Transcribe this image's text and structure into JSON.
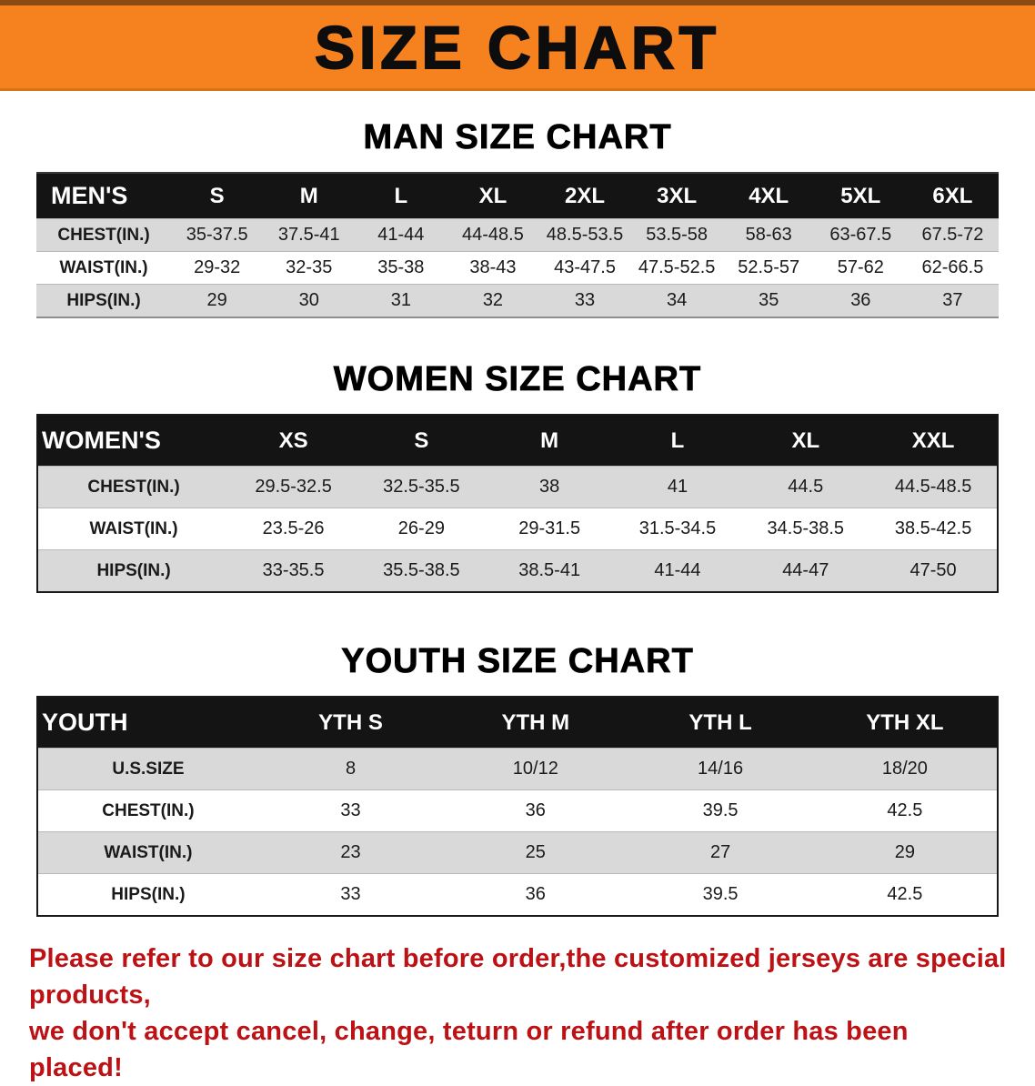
{
  "banner": {
    "title": "SIZE CHART"
  },
  "sections": {
    "men": {
      "heading": "MAN SIZE CHART",
      "table": {
        "header": [
          "MEN'S",
          "S",
          "M",
          "L",
          "XL",
          "2XL",
          "3XL",
          "4XL",
          "5XL",
          "6XL"
        ],
        "rows": [
          [
            "CHEST(IN.)",
            "35-37.5",
            "37.5-41",
            "41-44",
            "44-48.5",
            "48.5-53.5",
            "53.5-58",
            "58-63",
            "63-67.5",
            "67.5-72"
          ],
          [
            "WAIST(IN.)",
            "29-32",
            "32-35",
            "35-38",
            "38-43",
            "43-47.5",
            "47.5-52.5",
            "52.5-57",
            "57-62",
            "62-66.5"
          ],
          [
            "HIPS(IN.)",
            "29",
            "30",
            "31",
            "32",
            "33",
            "34",
            "35",
            "36",
            "37"
          ]
        ]
      }
    },
    "women": {
      "heading": "WOMEN SIZE CHART",
      "table": {
        "header": [
          "WOMEN'S",
          "XS",
          "S",
          "M",
          "L",
          "XL",
          "XXL"
        ],
        "rows": [
          [
            "CHEST(IN.)",
            "29.5-32.5",
            "32.5-35.5",
            "38",
            "41",
            "44.5",
            "44.5-48.5"
          ],
          [
            "WAIST(IN.)",
            "23.5-26",
            "26-29",
            "29-31.5",
            "31.5-34.5",
            "34.5-38.5",
            "38.5-42.5"
          ],
          [
            "HIPS(IN.)",
            "33-35.5",
            "35.5-38.5",
            "38.5-41",
            "41-44",
            "44-47",
            "47-50"
          ]
        ]
      }
    },
    "youth": {
      "heading": "YOUTH SIZE CHART",
      "table": {
        "header": [
          "YOUTH",
          "YTH S",
          "YTH M",
          "YTH L",
          "YTH XL"
        ],
        "rows": [
          [
            "U.S.SIZE",
            "8",
            "10/12",
            "14/16",
            "18/20"
          ],
          [
            "CHEST(IN.)",
            "33",
            "36",
            "39.5",
            "42.5"
          ],
          [
            "WAIST(IN.)",
            "23",
            "25",
            "27",
            "29"
          ],
          [
            "HIPS(IN.)",
            "33",
            "36",
            "39.5",
            "42.5"
          ]
        ]
      }
    }
  },
  "footer": {
    "line1": "Please refer to our size chart before order,the customized jerseys are special products,",
    "line2": "we don't accept cancel, change, teturn or refund after order has been placed!"
  },
  "colors": {
    "banner_orange": "#f5821f",
    "table_header_black": "#141414",
    "row_gray": "#d9d9d9",
    "disclaimer_red": "#bc1215"
  }
}
